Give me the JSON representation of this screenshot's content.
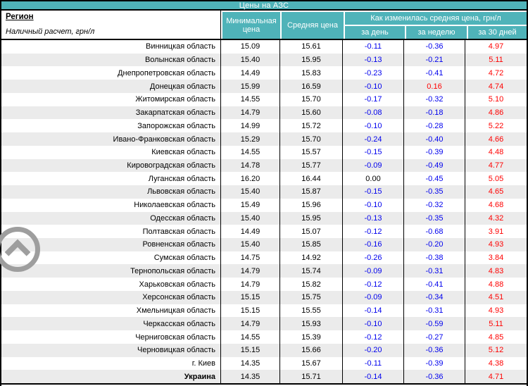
{
  "title": "Цены на АЗС",
  "header": {
    "region_title": "Регион",
    "region_subtitle": "Наличный расчет, грн/л",
    "col_min": "Минимальная цена",
    "col_avg": "Средняя цена",
    "col_change_group": "Как изменилась средняя цена, грн/л",
    "col_day": "за день",
    "col_week": "за неделю",
    "col_month": "за 30 дней"
  },
  "colors": {
    "teal": "#4fb3b9",
    "stripe": "#ebebeb",
    "negative": "#0000ee",
    "positive": "#ff0000"
  },
  "icons": {
    "scroll_top": "chevron-up-circle-icon"
  },
  "rows": [
    {
      "region": "Винницкая область",
      "min": "15.09",
      "avg": "15.61",
      "day": "-0.11",
      "week": "-0.36",
      "month": "4.97",
      "bold": false
    },
    {
      "region": "Волынская область",
      "min": "15.40",
      "avg": "15.95",
      "day": "-0.13",
      "week": "-0.21",
      "month": "5.11",
      "bold": false
    },
    {
      "region": "Днепропетровская область",
      "min": "14.49",
      "avg": "15.83",
      "day": "-0.23",
      "week": "-0.41",
      "month": "4.72",
      "bold": false
    },
    {
      "region": "Донецкая область",
      "min": "15.99",
      "avg": "16.59",
      "day": "-0.10",
      "week": "0.16",
      "month": "4.74",
      "bold": false
    },
    {
      "region": "Житомирская область",
      "min": "14.55",
      "avg": "15.70",
      "day": "-0.17",
      "week": "-0.32",
      "month": "5.10",
      "bold": false
    },
    {
      "region": "Закарпатская область",
      "min": "14.79",
      "avg": "15.60",
      "day": "-0.08",
      "week": "-0.18",
      "month": "4.86",
      "bold": false
    },
    {
      "region": "Запорожская область",
      "min": "14.99",
      "avg": "15.72",
      "day": "-0.10",
      "week": "-0.28",
      "month": "5.22",
      "bold": false
    },
    {
      "region": "Ивано-Франковская область",
      "min": "15.29",
      "avg": "15.70",
      "day": "-0.24",
      "week": "-0.40",
      "month": "4.66",
      "bold": false
    },
    {
      "region": "Киевская область",
      "min": "14.55",
      "avg": "15.57",
      "day": "-0.15",
      "week": "-0.39",
      "month": "4.48",
      "bold": false
    },
    {
      "region": "Кировоградская область",
      "min": "14.78",
      "avg": "15.77",
      "day": "-0.09",
      "week": "-0.49",
      "month": "4.77",
      "bold": false
    },
    {
      "region": "Луганская область",
      "min": "16.20",
      "avg": "16.44",
      "day": "0.00",
      "week": "-0.45",
      "month": "5.05",
      "bold": false
    },
    {
      "region": "Львовская область",
      "min": "15.40",
      "avg": "15.87",
      "day": "-0.15",
      "week": "-0.35",
      "month": "4.65",
      "bold": false
    },
    {
      "region": "Николаевская область",
      "min": "15.49",
      "avg": "15.96",
      "day": "-0.10",
      "week": "-0.32",
      "month": "4.68",
      "bold": false
    },
    {
      "region": "Одесская область",
      "min": "15.40",
      "avg": "15.95",
      "day": "-0.13",
      "week": "-0.35",
      "month": "4.32",
      "bold": false
    },
    {
      "region": "Полтавская область",
      "min": "14.49",
      "avg": "15.07",
      "day": "-0.12",
      "week": "-0.68",
      "month": "3.91",
      "bold": false
    },
    {
      "region": "Ровненская область",
      "min": "15.40",
      "avg": "15.85",
      "day": "-0.16",
      "week": "-0.20",
      "month": "4.93",
      "bold": false
    },
    {
      "region": "Сумская область",
      "min": "14.75",
      "avg": "14.92",
      "day": "-0.26",
      "week": "-0.38",
      "month": "3.84",
      "bold": false
    },
    {
      "region": "Тернопольская область",
      "min": "14.79",
      "avg": "15.74",
      "day": "-0.09",
      "week": "-0.31",
      "month": "4.83",
      "bold": false
    },
    {
      "region": "Харьковская область",
      "min": "14.79",
      "avg": "15.82",
      "day": "-0.12",
      "week": "-0.41",
      "month": "4.88",
      "bold": false
    },
    {
      "region": "Херсонская область",
      "min": "15.15",
      "avg": "15.75",
      "day": "-0.09",
      "week": "-0.34",
      "month": "4.51",
      "bold": false
    },
    {
      "region": "Хмельницкая область",
      "min": "15.15",
      "avg": "15.55",
      "day": "-0.14",
      "week": "-0.31",
      "month": "4.93",
      "bold": false
    },
    {
      "region": "Черкасская область",
      "min": "14.79",
      "avg": "15.93",
      "day": "-0.10",
      "week": "-0.59",
      "month": "5.11",
      "bold": false
    },
    {
      "region": "Черниговская область",
      "min": "14.55",
      "avg": "15.39",
      "day": "-0.12",
      "week": "-0.27",
      "month": "4.85",
      "bold": false
    },
    {
      "region": "Черновицкая область",
      "min": "15.15",
      "avg": "15.66",
      "day": "-0.20",
      "week": "-0.36",
      "month": "5.12",
      "bold": false
    },
    {
      "region": "г. Киев",
      "min": "14.35",
      "avg": "15.67",
      "day": "-0.11",
      "week": "-0.39",
      "month": "4.38",
      "bold": false
    },
    {
      "region": "Украина",
      "min": "14.35",
      "avg": "15.71",
      "day": "-0.14",
      "week": "-0.36",
      "month": "4.71",
      "bold": true
    }
  ]
}
